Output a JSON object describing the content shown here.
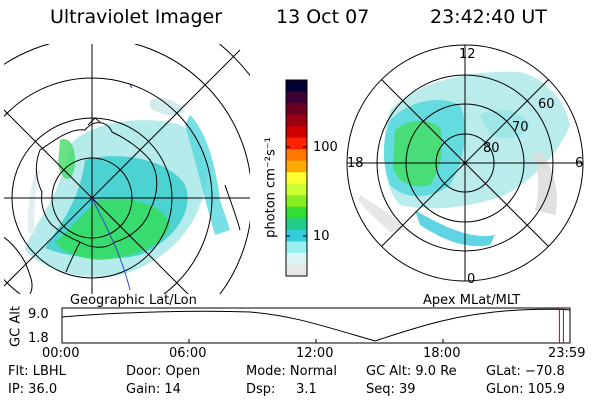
{
  "header": {
    "instrument": "Ultraviolet Imager",
    "date": "13 Oct 07",
    "time": "23:42:40 UT"
  },
  "colorbar": {
    "label": "photon cm⁻²s⁻¹",
    "ticks": [
      "100",
      "10"
    ],
    "colors": [
      "#000033",
      "#3a0033",
      "#6a0022",
      "#990011",
      "#cc0000",
      "#ff2200",
      "#ff7700",
      "#ffaa00",
      "#ffff33",
      "#ccff33",
      "#88ee22",
      "#33dd33",
      "#22cc88",
      "#33ccdd",
      "#99eeee",
      "#d8f4f4",
      "#e8e8e8"
    ]
  },
  "left_map": {
    "caption": "Geographic Lat/Lon"
  },
  "right_map": {
    "caption": "Apex MLat/MLT",
    "mlt_labels": {
      "top": "12",
      "left": "18",
      "right": "6",
      "bottom": "0"
    },
    "lat_labels": [
      "60",
      "70",
      "80"
    ]
  },
  "timeline": {
    "ylabel": "GC Alt",
    "ytick_top": "9.0",
    "ytick_bottom": "1.8",
    "xticks": [
      "00:00",
      "06:00",
      "12:00",
      "18:00",
      "23:59"
    ],
    "current_marker": 0.987
  },
  "status": {
    "row1": [
      "Flt: LBHL",
      "Door: Open",
      "Mode: Normal",
      "GC Alt: 9.0 Re",
      "GLat: −70.8"
    ],
    "row2": [
      "IP: 36.0",
      "Gain: 14",
      "Dsp:     3.1",
      "Seq: 39",
      "GLon: 105.9"
    ]
  }
}
